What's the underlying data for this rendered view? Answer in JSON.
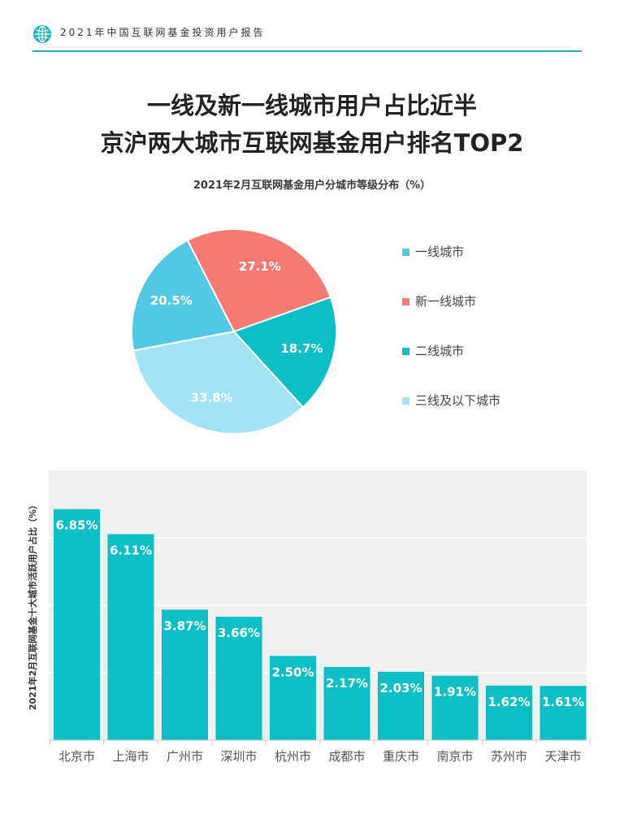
{
  "header": {
    "title": "2021年中国互联网基金投资用户报告",
    "icon": "globe-icon"
  },
  "page": {
    "title_line1": "一线及新一线城市用户占比近半",
    "title_line2": "京沪两大城市互联网基金用户排名TOP2"
  },
  "chart_data": [
    {
      "type": "pie",
      "title": "2021年2月互联网基金用户分城市等级分布（%）",
      "legend_position": "right",
      "slices": [
        {
          "label": "一线城市",
          "value": 20.5,
          "color": "#52c8e5",
          "value_label": "20.5%"
        },
        {
          "label": "新一线城市",
          "value": 27.1,
          "color": "#f47a72",
          "value_label": "27.1%"
        },
        {
          "label": "二线城市",
          "value": 18.7,
          "color": "#0bbfc4",
          "value_label": "18.7%"
        },
        {
          "label": "三线及以下城市",
          "value": 33.8,
          "color": "#a3e3f8",
          "value_label": "33.8%"
        }
      ]
    },
    {
      "type": "bar",
      "ylabel": "2021年2月互联网基金十大城市活跃用户占比（%）",
      "categories": [
        "北京市",
        "上海市",
        "广州市",
        "深圳市",
        "杭州市",
        "成都市",
        "重庆市",
        "南京市",
        "苏州市",
        "天津市"
      ],
      "values": [
        6.85,
        6.11,
        3.87,
        3.66,
        2.5,
        2.17,
        2.03,
        1.91,
        1.62,
        1.61
      ],
      "value_labels": [
        "6.85%",
        "6.11%",
        "3.87%",
        "3.66%",
        "2.50%",
        "2.17%",
        "2.03%",
        "1.91%",
        "1.62%",
        "1.61%"
      ],
      "ylim": [
        0,
        8
      ],
      "grid": true,
      "bar_color": "#0bbfc4",
      "background_color": "#efefef"
    }
  ]
}
